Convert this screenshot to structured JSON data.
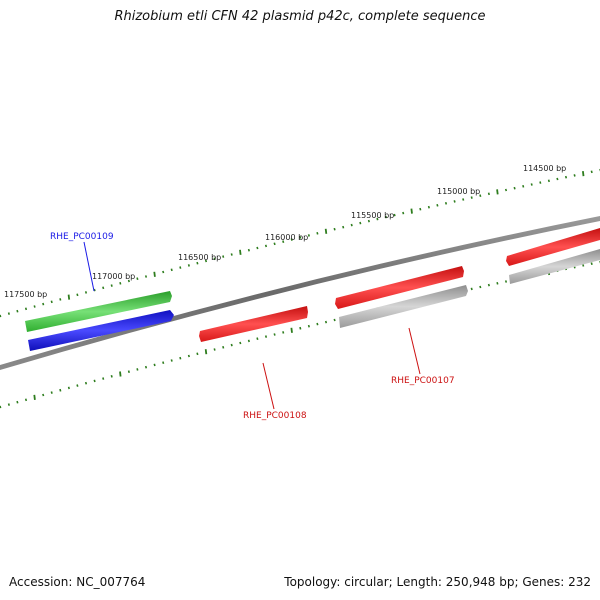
{
  "title": "Rhizobium etli CFN 42 plasmid p42c, complete sequence",
  "footer": {
    "accession": "Accession: NC_007764",
    "summary": "Topology: circular; Length: 250,948 bp; Genes: 232"
  },
  "colors": {
    "backbone": "#808080",
    "tick": "#2e7d1e",
    "green_gene": "#33bb33",
    "blue_gene": "#1a1ae6",
    "red_gene": "#e81c1c",
    "gray_gene": "#a8a8a8",
    "blue_label": "#1a1ae6",
    "red_label": "#cc1111"
  },
  "scale_labels": [
    "114500 bp",
    "115000 bp",
    "115500 bp",
    "116000 bp",
    "116500 bp",
    "117000 bp",
    "117500 bp"
  ],
  "genes": [
    {
      "label": "RHE_PC00109",
      "color_key": "blue_label"
    },
    {
      "label": "RHE_PC00108",
      "color_key": "red_label"
    },
    {
      "label": "RHE_PC00107",
      "color_key": "red_label"
    }
  ]
}
